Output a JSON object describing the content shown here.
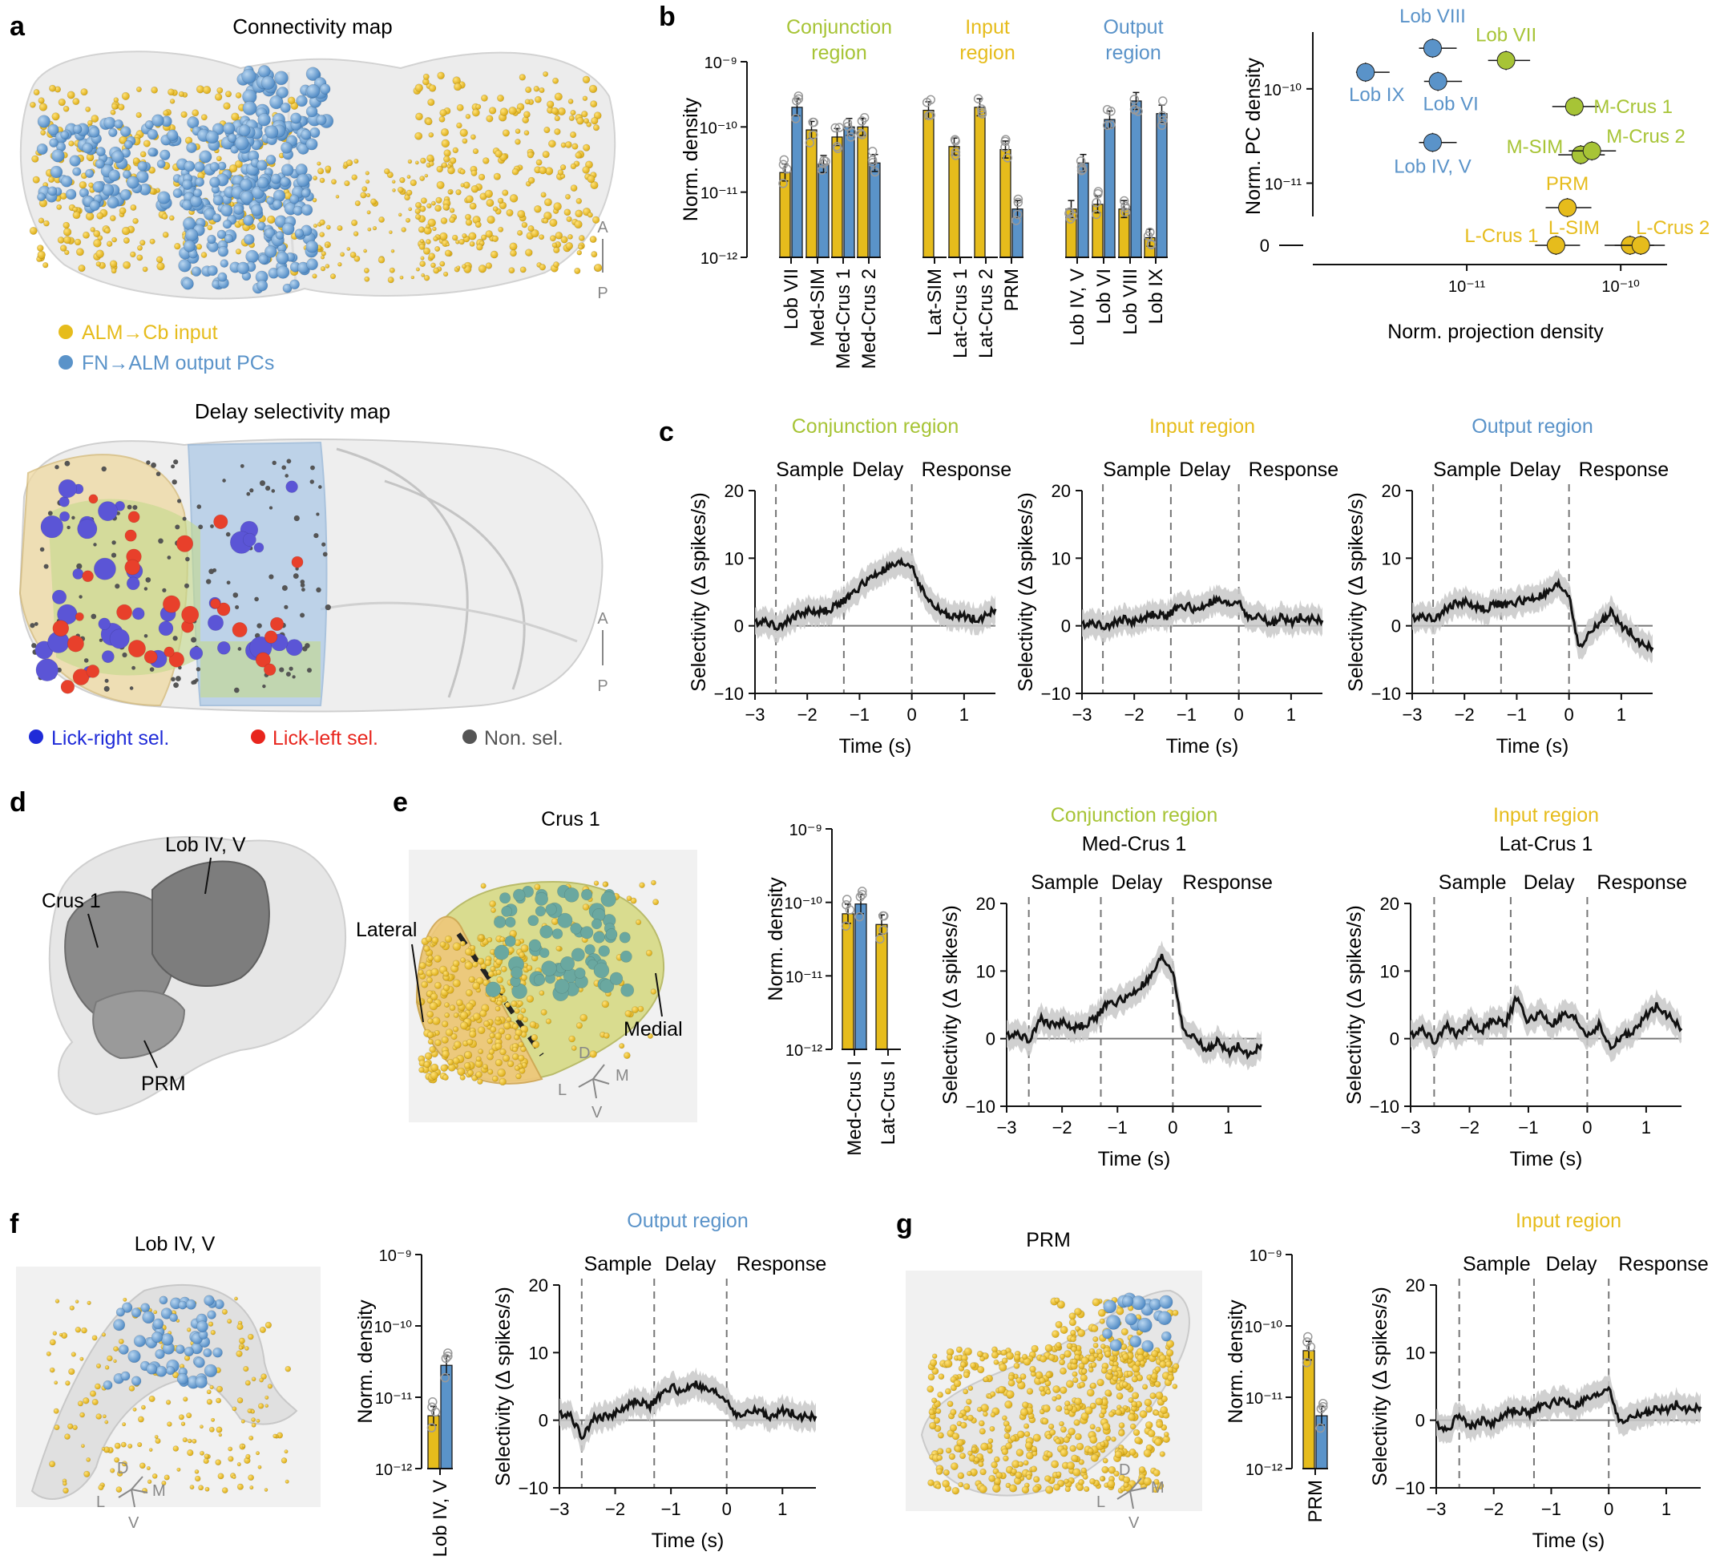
{
  "colors": {
    "input": "#e6bc1c",
    "output": "#5a93c9",
    "conj": "#a7c436",
    "left": "#e8251d",
    "right": "#1f2bd8",
    "nonsel": "#555555",
    "trace": "#111111",
    "sem": "#c8c8c8",
    "gray": "#777777"
  },
  "panels": {
    "a": "a",
    "b": "b",
    "c": "c",
    "d": "d",
    "e": "e",
    "f": "f",
    "g": "g"
  },
  "a": {
    "conn_title": "Connectivity map",
    "delay_title": "Delay selectivity map",
    "legend_input": "ALM→Cb input",
    "legend_output": "FN→ALM output PCs",
    "legend_right": "Lick-right sel.",
    "legend_left": "Lick-left sel.",
    "legend_non": "Non. sel.",
    "axis_a": "A",
    "axis_p": "P"
  },
  "common": {
    "ylabel_density": "Norm. density",
    "ylabel_sel": "Selectivity (Δ spikes/s)",
    "xlabel_time": "Time (s)",
    "epoch_sample": "Sample",
    "epoch_delay": "Delay",
    "epoch_response": "Response",
    "log_ticks": [
      "10⁻⁹",
      "10⁻¹⁰",
      "10⁻¹¹",
      "10⁻¹²"
    ],
    "sel_ticks_y": [
      "20",
      "10",
      "0",
      "−10"
    ],
    "time_ticks": [
      "−3",
      "−2",
      "−1",
      "0",
      "1"
    ],
    "conj_region": "Conjunction region",
    "input_region": "Input region",
    "output_region": "Output region"
  },
  "b": {
    "group_conj": [
      "Conjunction",
      "region"
    ],
    "group_input": [
      "Input",
      "region"
    ],
    "group_output": [
      "Output",
      "region"
    ],
    "scatter": {
      "ylabel": "Norm. PC density",
      "xlabel": "Norm. projection density",
      "yticks": [
        "10⁻¹⁰",
        "10⁻¹¹",
        "0"
      ],
      "xticks": [
        "10⁻¹¹",
        "10⁻¹⁰"
      ]
    }
  },
  "d": {
    "crus1": "Crus 1",
    "lob45": "Lob IV, V",
    "prm": "PRM"
  },
  "e": {
    "title": "Crus 1",
    "lateral": "Lateral",
    "medial": "Medial",
    "dir_d": "D",
    "dir_m": "M",
    "dir_l": "L",
    "dir_v": "V",
    "sub1": "Med-Crus 1",
    "sub2": "Lat-Crus 1"
  },
  "f": {
    "title": "Lob IV, V"
  },
  "g": {
    "title": "PRM"
  },
  "chart_data": [
    {
      "id": "b-bars",
      "type": "bar",
      "scale": "log",
      "ylabel": "Norm. density",
      "ylim": [
        1e-12,
        1e-09
      ],
      "categories": [
        "Lob VII",
        "Med-SIM",
        "Med-Crus 1",
        "Med-Crus 2",
        "Lat-SIM",
        "Lat-Crus 1",
        "Lat-Crus 2",
        "PRM",
        "Lob IV, V",
        "Lob VI",
        "Lob VIII",
        "Lob IX"
      ],
      "groups": [
        "Conjunction region",
        "Conjunction region",
        "Conjunction region",
        "Conjunction region",
        "Input region",
        "Input region",
        "Input region",
        "Input region",
        "Output region",
        "Output region",
        "Output region",
        "Output region"
      ],
      "series": [
        {
          "name": "ALM→Cb input",
          "values": [
            2e-11,
            9e-11,
            7e-11,
            1e-10,
            1.8e-10,
            5e-11,
            2e-10,
            4.5e-11,
            5.5e-12,
            6.5e-12,
            5.5e-12,
            2e-12
          ]
        },
        {
          "name": "FN→ALM output PCs",
          "values": [
            2e-10,
            2.7e-11,
            1e-10,
            2.8e-11,
            null,
            null,
            null,
            5.5e-12,
            2.8e-11,
            1.3e-10,
            2.5e-10,
            1.6e-10
          ]
        }
      ]
    },
    {
      "id": "b-scatter",
      "type": "scatter",
      "xlabel": "Norm. projection density",
      "ylabel": "Norm. PC density",
      "xscale": "log",
      "xlim": [
        1e-12,
        2e-10
      ],
      "yscale": "log",
      "ylim": [
        3e-12,
        4e-10
      ],
      "points": [
        {
          "label": "Lob VIII",
          "x": 6e-12,
          "y": 2.7e-10,
          "group": "output"
        },
        {
          "label": "Lob VII",
          "x": 1.8e-11,
          "y": 2e-10,
          "group": "conj"
        },
        {
          "label": "Lob IX",
          "x": 2.2e-12,
          "y": 1.5e-10,
          "group": "output"
        },
        {
          "label": "Lob VI",
          "x": 6.5e-12,
          "y": 1.2e-10,
          "group": "output"
        },
        {
          "label": "M-Crus 1",
          "x": 5e-11,
          "y": 6.5e-11,
          "group": "conj"
        },
        {
          "label": "Lob IV, V",
          "x": 6e-12,
          "y": 2.7e-11,
          "group": "output"
        },
        {
          "label": "M-SIM",
          "x": 5.5e-11,
          "y": 2e-11,
          "group": "conj"
        },
        {
          "label": "M-Crus 2",
          "x": 6.5e-11,
          "y": 2.2e-11,
          "group": "conj"
        },
        {
          "label": "PRM",
          "x": 4.5e-11,
          "y": 5.5e-12,
          "group": "input"
        },
        {
          "label": "L-Crus 1",
          "x": 3.8e-11,
          "y": 0,
          "group": "input"
        },
        {
          "label": "L-SIM",
          "x": 1.15e-10,
          "y": 0,
          "group": "input"
        },
        {
          "label": "L-Crus 2",
          "x": 1.35e-10,
          "y": 0,
          "group": "input"
        }
      ]
    },
    {
      "id": "c1",
      "type": "line",
      "title": "Conjunction region",
      "xlabel": "Time (s)",
      "ylabel": "Selectivity (Δ spikes/s)",
      "xlim": [
        -3,
        1.6
      ],
      "ylim": [
        -10,
        20
      ],
      "epochs": [
        -2.6,
        -1.3,
        0
      ],
      "x": [
        -3.0,
        -2.8,
        -2.6,
        -2.4,
        -2.2,
        -2.0,
        -1.8,
        -1.6,
        -1.4,
        -1.2,
        -1.0,
        -0.8,
        -0.6,
        -0.4,
        -0.2,
        0.0,
        0.2,
        0.4,
        0.6,
        0.8,
        1.0,
        1.2,
        1.4,
        1.6
      ],
      "y": [
        0.5,
        0.8,
        -0.2,
        0.6,
        1.6,
        2.2,
        2.0,
        2.3,
        3.2,
        4.2,
        5.8,
        7.0,
        8.0,
        8.7,
        9.2,
        9.0,
        5.2,
        3.0,
        2.0,
        1.2,
        1.5,
        1.0,
        1.4,
        2.5
      ]
    },
    {
      "id": "c2",
      "type": "line",
      "title": "Input region",
      "xlabel": "Time (s)",
      "ylabel": "Selectivity (Δ spikes/s)",
      "xlim": [
        -3,
        1.6
      ],
      "ylim": [
        -10,
        20
      ],
      "epochs": [
        -2.6,
        -1.3,
        0
      ],
      "x": [
        -3.0,
        -2.8,
        -2.6,
        -2.4,
        -2.2,
        -2.0,
        -1.8,
        -1.6,
        -1.4,
        -1.2,
        -1.0,
        -0.8,
        -0.6,
        -0.4,
        -0.2,
        0.0,
        0.2,
        0.4,
        0.6,
        0.8,
        1.0,
        1.2,
        1.4,
        1.6
      ],
      "y": [
        0.2,
        0.5,
        -0.1,
        0.4,
        1.0,
        0.6,
        1.2,
        1.8,
        1.3,
        2.5,
        3.0,
        2.2,
        3.3,
        3.7,
        3.0,
        3.8,
        1.0,
        1.5,
        0.2,
        1.2,
        0.5,
        1.4,
        1.0,
        0.8
      ]
    },
    {
      "id": "c3",
      "type": "line",
      "title": "Output region",
      "xlabel": "Time (s)",
      "ylabel": "Selectivity (Δ spikes/s)",
      "xlim": [
        -3,
        1.6
      ],
      "ylim": [
        -10,
        20
      ],
      "epochs": [
        -2.6,
        -1.3,
        0
      ],
      "x": [
        -3.0,
        -2.8,
        -2.6,
        -2.4,
        -2.2,
        -2.0,
        -1.8,
        -1.6,
        -1.4,
        -1.2,
        -1.0,
        -0.8,
        -0.6,
        -0.4,
        -0.2,
        0.0,
        0.2,
        0.4,
        0.6,
        0.8,
        1.0,
        1.2,
        1.4,
        1.6
      ],
      "y": [
        1.2,
        1.5,
        1.0,
        2.2,
        3.2,
        3.6,
        2.8,
        2.4,
        3.3,
        3.0,
        3.6,
        3.8,
        4.2,
        4.8,
        6.0,
        4.6,
        -3.5,
        -1.0,
        0.5,
        2.0,
        0.0,
        -1.0,
        -2.8,
        -3.2
      ]
    },
    {
      "id": "e-bars",
      "type": "bar",
      "scale": "log",
      "ylabel": "Norm. density",
      "ylim": [
        1e-12,
        1e-09
      ],
      "categories": [
        "Med-Crus I",
        "Lat-Crus I"
      ],
      "series": [
        {
          "name": "ALM→Cb input",
          "values": [
            7e-11,
            5e-11
          ]
        },
        {
          "name": "FN→ALM output PCs",
          "values": [
            9.5e-11,
            null
          ]
        }
      ]
    },
    {
      "id": "e1",
      "type": "line",
      "title": "Conjunction region",
      "subtitle": "Med-Crus 1",
      "xlabel": "Time (s)",
      "ylabel": "Selectivity (Δ spikes/s)",
      "xlim": [
        -3,
        1.6
      ],
      "ylim": [
        -10,
        20
      ],
      "epochs": [
        -2.6,
        -1.3,
        0
      ],
      "x": [
        -3.0,
        -2.8,
        -2.6,
        -2.4,
        -2.2,
        -2.0,
        -1.8,
        -1.6,
        -1.4,
        -1.2,
        -1.0,
        -0.8,
        -0.6,
        -0.4,
        -0.2,
        0.0,
        0.2,
        0.4,
        0.6,
        0.8,
        1.0,
        1.2,
        1.4,
        1.6
      ],
      "y": [
        0.5,
        0.8,
        -0.3,
        3.0,
        2.0,
        2.5,
        1.5,
        2.0,
        3.0,
        5.0,
        5.5,
        6.2,
        7.5,
        9.0,
        12.0,
        10.0,
        0.8,
        0.2,
        -1.8,
        -0.5,
        -2.0,
        -1.0,
        -2.5,
        -0.8
      ]
    },
    {
      "id": "e2",
      "type": "line",
      "title": "Input region",
      "subtitle": "Lat-Crus 1",
      "xlabel": "Time (s)",
      "ylabel": "Selectivity (Δ spikes/s)",
      "xlim": [
        -3,
        1.6
      ],
      "ylim": [
        -10,
        20
      ],
      "epochs": [
        -2.6,
        -1.3,
        0
      ],
      "x": [
        -3.0,
        -2.8,
        -2.6,
        -2.4,
        -2.2,
        -2.0,
        -1.8,
        -1.6,
        -1.4,
        -1.2,
        -1.0,
        -0.8,
        -0.6,
        -0.4,
        -0.2,
        0.0,
        0.2,
        0.4,
        0.6,
        0.8,
        1.0,
        1.2,
        1.4,
        1.6
      ],
      "y": [
        0.5,
        1.5,
        -0.5,
        2.0,
        0.5,
        2.5,
        1.0,
        3.0,
        2.0,
        6.0,
        2.5,
        3.8,
        2.0,
        3.5,
        2.8,
        0.5,
        2.0,
        -1.5,
        0.5,
        1.0,
        3.5,
        5.0,
        3.2,
        1.5
      ]
    },
    {
      "id": "f-bars",
      "type": "bar",
      "scale": "log",
      "ylabel": "Norm. density",
      "ylim": [
        1e-12,
        1e-09
      ],
      "categories": [
        "Lob IV, V"
      ],
      "series": [
        {
          "name": "ALM→Cb input",
          "values": [
            5.5e-12
          ]
        },
        {
          "name": "FN→ALM output PCs",
          "values": [
            2.8e-11
          ]
        }
      ]
    },
    {
      "id": "f1",
      "type": "line",
      "title": "Output region",
      "xlabel": "Time (s)",
      "ylabel": "Selectivity (Δ spikes/s)",
      "xlim": [
        -3,
        1.6
      ],
      "ylim": [
        -10,
        20
      ],
      "epochs": [
        -2.6,
        -1.3,
        0
      ],
      "x": [
        -3.0,
        -2.8,
        -2.6,
        -2.4,
        -2.2,
        -2.0,
        -1.8,
        -1.6,
        -1.4,
        -1.2,
        -1.0,
        -0.8,
        -0.6,
        -0.4,
        -0.2,
        0.0,
        0.2,
        0.4,
        0.6,
        0.8,
        1.0,
        1.2,
        1.4,
        1.6
      ],
      "y": [
        1.0,
        0.8,
        -2.5,
        0.2,
        0.5,
        1.0,
        2.0,
        3.0,
        2.0,
        3.5,
        5.0,
        4.0,
        5.5,
        4.5,
        4.0,
        3.0,
        0.5,
        1.2,
        1.5,
        0.2,
        1.5,
        1.0,
        0.5,
        0.6
      ]
    },
    {
      "id": "g-bars",
      "type": "bar",
      "scale": "log",
      "ylabel": "Norm. density",
      "ylim": [
        1e-12,
        1e-09
      ],
      "categories": [
        "PRM"
      ],
      "series": [
        {
          "name": "ALM→Cb input",
          "values": [
            4.5e-11
          ]
        },
        {
          "name": "FN→ALM output PCs",
          "values": [
            5.5e-12
          ]
        }
      ]
    },
    {
      "id": "g1",
      "type": "line",
      "title": "Input region",
      "xlabel": "Time (s)",
      "ylabel": "Selectivity (Δ spikes/s)",
      "xlim": [
        -3,
        1.6
      ],
      "ylim": [
        -10,
        20
      ],
      "epochs": [
        -2.6,
        -1.3,
        0
      ],
      "x": [
        -3.0,
        -2.8,
        -2.6,
        -2.4,
        -2.2,
        -2.0,
        -1.8,
        -1.6,
        -1.4,
        -1.2,
        -1.0,
        -0.8,
        -0.6,
        -0.4,
        -0.2,
        0.0,
        0.2,
        0.4,
        0.6,
        0.8,
        1.0,
        1.2,
        1.4,
        1.6
      ],
      "y": [
        -0.5,
        -1.5,
        1.0,
        -1.0,
        0.0,
        -0.5,
        1.0,
        1.5,
        1.0,
        2.0,
        2.5,
        3.0,
        2.0,
        3.0,
        3.5,
        5.0,
        -0.5,
        0.5,
        1.0,
        1.5,
        1.5,
        2.5,
        1.5,
        2.0
      ]
    }
  ]
}
